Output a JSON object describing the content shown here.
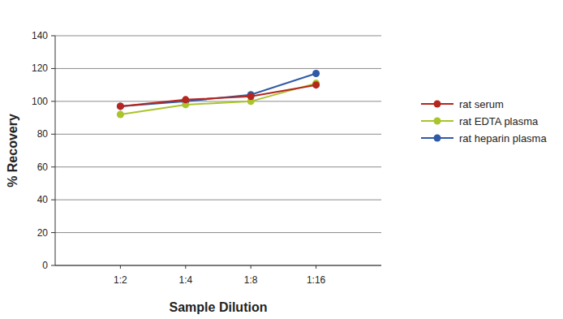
{
  "chart_data": {
    "type": "line",
    "x_label": "Sample Dilution",
    "y_label": "% Recovery",
    "categories": [
      "1:2",
      "1:4",
      "1:8",
      "1:16"
    ],
    "series": [
      {
        "name": "rat serum",
        "color": "#b5261e",
        "marker": "circle",
        "values": [
          97,
          101,
          103,
          110
        ]
      },
      {
        "name": "rat EDTA plasma",
        "color": "#a9c42c",
        "marker": "circle",
        "values": [
          92,
          98,
          100,
          111
        ]
      },
      {
        "name": "rat  heparin plasma",
        "color": "#2f5aa6",
        "marker": "circle",
        "values": [
          97,
          100,
          104,
          117
        ]
      }
    ],
    "ylim": [
      0,
      140
    ],
    "yticks": [
      0,
      20,
      40,
      60,
      80,
      100,
      120,
      140
    ],
    "grid": true,
    "legend": "right"
  }
}
